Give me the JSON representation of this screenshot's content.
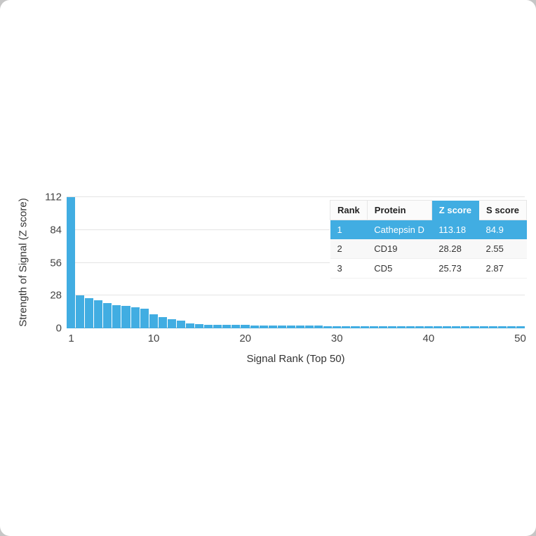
{
  "chart_data": {
    "type": "bar",
    "title": "",
    "xlabel": "Signal Rank (Top 50)",
    "ylabel": "Strength of Signal (Z score)",
    "ylim": [
      0,
      112
    ],
    "yticks": [
      0,
      28,
      56,
      84,
      112
    ],
    "xticks": [
      1,
      10,
      20,
      30,
      40,
      50
    ],
    "grid": "horizontal",
    "bar_color": "#41ade2",
    "x": [
      1,
      2,
      3,
      4,
      5,
      6,
      7,
      8,
      9,
      10,
      11,
      12,
      13,
      14,
      15,
      16,
      17,
      18,
      19,
      20,
      21,
      22,
      23,
      24,
      25,
      26,
      27,
      28,
      29,
      30,
      31,
      32,
      33,
      34,
      35,
      36,
      37,
      38,
      39,
      40,
      41,
      42,
      43,
      44,
      45,
      46,
      47,
      48,
      49,
      50
    ],
    "values": [
      113.18,
      28.28,
      25.73,
      23.8,
      21.4,
      19.7,
      19.0,
      17.9,
      16.7,
      11.9,
      9.5,
      7.7,
      6.5,
      4.2,
      3.6,
      3.3,
      3.1,
      3.0,
      2.9,
      2.8,
      2.6,
      2.5,
      2.4,
      2.35,
      2.3,
      2.25,
      2.2,
      2.15,
      2.1,
      2.05,
      2.0,
      1.95,
      1.9,
      1.88,
      1.86,
      1.84,
      1.82,
      1.8,
      1.78,
      1.76,
      1.74,
      1.72,
      1.7,
      1.68,
      1.66,
      1.64,
      1.62,
      1.6,
      1.58,
      1.56
    ]
  },
  "table": {
    "highlight_color": "#41ade2",
    "headers": {
      "rank": "Rank",
      "protein": "Protein",
      "z_score": "Z score",
      "s_score": "S score"
    },
    "rows": [
      {
        "rank": "1",
        "protein": "Cathepsin D",
        "z_score": "113.18",
        "s_score": "84.9",
        "highlighted": true
      },
      {
        "rank": "2",
        "protein": "CD19",
        "z_score": "28.28",
        "s_score": "2.55",
        "highlighted": false
      },
      {
        "rank": "3",
        "protein": "CD5",
        "z_score": "25.73",
        "s_score": "2.87",
        "highlighted": false
      }
    ]
  }
}
